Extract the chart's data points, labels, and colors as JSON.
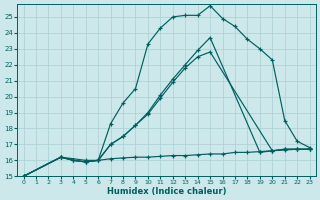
{
  "xlabel": "Humidex (Indice chaleur)",
  "bg_color": "#cce8eb",
  "grid_color": "#aacfd5",
  "line_color": "#005f5f",
  "xlim_min": -0.5,
  "xlim_max": 23.5,
  "ylim_min": 15,
  "ylim_max": 25.8,
  "xticks": [
    0,
    1,
    2,
    3,
    4,
    5,
    6,
    7,
    8,
    9,
    10,
    11,
    12,
    13,
    14,
    15,
    16,
    17,
    18,
    19,
    20,
    21,
    22,
    23
  ],
  "yticks": [
    15,
    16,
    17,
    18,
    19,
    20,
    21,
    22,
    23,
    24,
    25
  ],
  "curve1_x": [
    0,
    3,
    5,
    6,
    7,
    8,
    9,
    10,
    11,
    12,
    13,
    14,
    15,
    16,
    17,
    18,
    19,
    20,
    21,
    22,
    23
  ],
  "curve1_y": [
    15,
    16.2,
    16.0,
    16.0,
    18.3,
    19.6,
    20.5,
    23.3,
    24.3,
    25.0,
    25.1,
    25.1,
    25.7,
    24.9,
    24.4,
    23.6,
    23.0,
    22.3,
    18.5,
    17.2,
    16.8
  ],
  "curve2_x": [
    0,
    3,
    4,
    5,
    6,
    7,
    8,
    9,
    10,
    11,
    12,
    13,
    14,
    15,
    20,
    21,
    22,
    23
  ],
  "curve2_y": [
    15,
    16.2,
    16.0,
    15.9,
    16.0,
    17.0,
    17.5,
    18.2,
    18.9,
    19.9,
    20.9,
    21.8,
    22.5,
    22.8,
    16.6,
    16.7,
    16.7,
    16.7
  ],
  "curve3_x": [
    0,
    3,
    4,
    5,
    6,
    7,
    8,
    9,
    10,
    11,
    12,
    13,
    14,
    15,
    19,
    20,
    21,
    22,
    23
  ],
  "curve3_y": [
    15,
    16.2,
    16.0,
    15.9,
    16.0,
    17.0,
    17.5,
    18.2,
    19.0,
    20.1,
    21.1,
    22.0,
    22.9,
    23.7,
    16.5,
    16.6,
    16.7,
    16.7,
    16.7
  ],
  "curve_flat_x": [
    0,
    3,
    4,
    5,
    6,
    7,
    8,
    9,
    10,
    11,
    12,
    13,
    14,
    15,
    16,
    17,
    18,
    19,
    20,
    21,
    22,
    23
  ],
  "curve_flat_y": [
    15,
    16.2,
    16.0,
    15.9,
    16.0,
    16.1,
    16.15,
    16.2,
    16.2,
    16.25,
    16.3,
    16.3,
    16.35,
    16.4,
    16.4,
    16.5,
    16.5,
    16.55,
    16.6,
    16.65,
    16.7,
    16.7
  ]
}
